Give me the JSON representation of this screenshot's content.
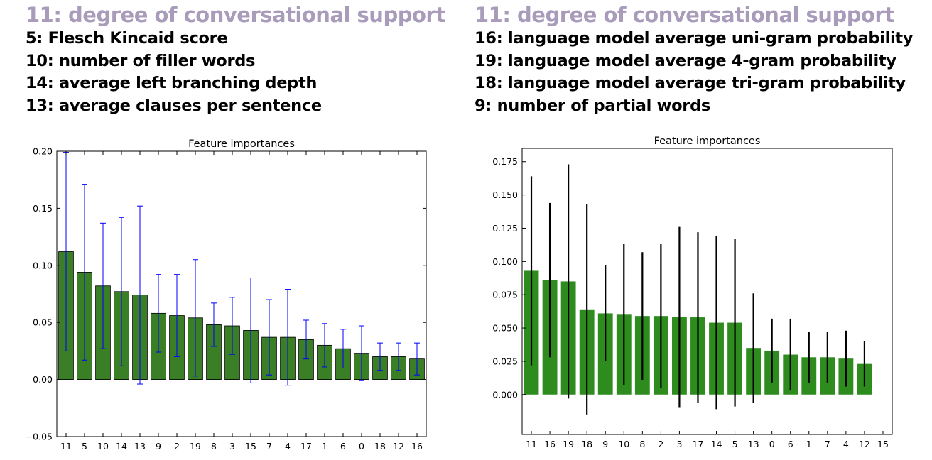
{
  "panels": [
    {
      "heading": "11: degree of conversational support",
      "feature_list": [
        "5: Flesch Kincaid score",
        "10: number of filler words",
        "14: average left branching depth",
        "13: average clauses per sentence"
      ]
    },
    {
      "heading": "11: degree of conversational support",
      "feature_list": [
        "16: language model average uni-gram probability",
        "19: language model average 4-gram probability",
        "18: language model average tri-gram probability",
        "9: number of partial words"
      ]
    }
  ],
  "colors": {
    "heading": "#a99cbb",
    "left_bar_fill": "#3a7e25",
    "left_bar_edge": "#000000",
    "left_error_bar": "#0000ff",
    "right_bar_fill": "#2e8b1e",
    "right_error_bar": "#000000"
  },
  "chart_data": [
    {
      "type": "bar",
      "title": "Feature importances",
      "xlabel": "",
      "ylabel": "",
      "categories": [
        "11",
        "5",
        "10",
        "14",
        "13",
        "9",
        "2",
        "19",
        "8",
        "3",
        "15",
        "7",
        "4",
        "17",
        "1",
        "6",
        "0",
        "18",
        "12",
        "16"
      ],
      "values": [
        0.112,
        0.094,
        0.082,
        0.077,
        0.074,
        0.058,
        0.056,
        0.054,
        0.048,
        0.047,
        0.043,
        0.037,
        0.037,
        0.035,
        0.03,
        0.027,
        0.023,
        0.02,
        0.02,
        0.018
      ],
      "error": [
        0.087,
        0.077,
        0.055,
        0.065,
        0.078,
        0.034,
        0.036,
        0.051,
        0.019,
        0.025,
        0.046,
        0.033,
        0.042,
        0.017,
        0.019,
        0.017,
        0.024,
        0.012,
        0.012,
        0.014
      ],
      "ylim": [
        -0.05,
        0.2
      ],
      "yticks": [
        -0.05,
        0.0,
        0.05,
        0.1,
        0.15,
        0.2
      ],
      "ytick_labels": [
        "−0.05",
        "0.00",
        "0.05",
        "0.10",
        "0.15",
        "0.20"
      ],
      "grid": false,
      "legend": "none"
    },
    {
      "type": "bar",
      "title": "Feature importances",
      "xlabel": "",
      "ylabel": "",
      "categories": [
        "11",
        "16",
        "19",
        "18",
        "9",
        "10",
        "8",
        "2",
        "3",
        "17",
        "14",
        "5",
        "13",
        "0",
        "6",
        "1",
        "7",
        "4",
        "12",
        "15"
      ],
      "values": [
        0.093,
        0.086,
        0.085,
        0.064,
        0.061,
        0.06,
        0.059,
        0.059,
        0.058,
        0.058,
        0.054,
        0.054,
        0.035,
        0.033,
        0.03,
        0.028,
        0.028,
        0.027,
        0.023,
        0
      ],
      "error": [
        0.071,
        0.058,
        0.088,
        0.079,
        0.036,
        0.053,
        0.048,
        0.054,
        0.068,
        0.064,
        0.065,
        0.063,
        0.041,
        0.024,
        0.027,
        0.019,
        0.019,
        0.021,
        0.017,
        0
      ],
      "ylim": [
        -0.03,
        0.185
      ],
      "yticks": [
        0.0,
        0.025,
        0.05,
        0.075,
        0.1,
        0.125,
        0.15,
        0.175
      ],
      "ytick_labels": [
        "0.000",
        "0.025",
        "0.050",
        "0.075",
        "0.100",
        "0.125",
        "0.150",
        "0.175"
      ],
      "grid": false,
      "legend": "none"
    }
  ]
}
